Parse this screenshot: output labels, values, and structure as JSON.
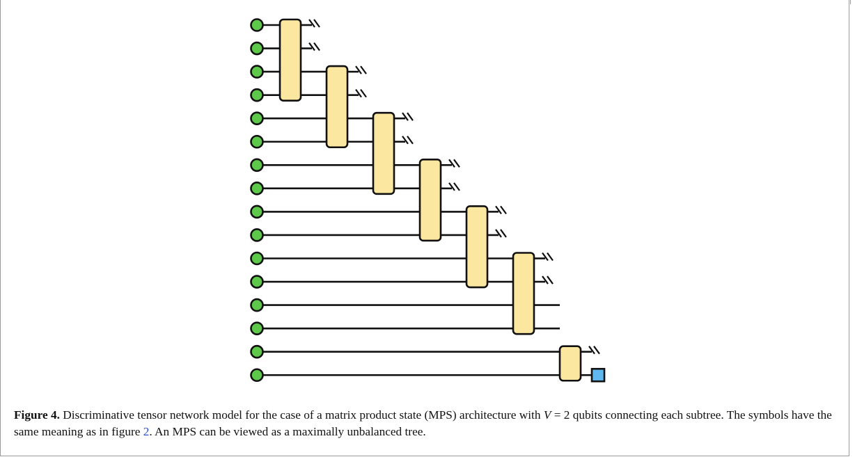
{
  "figure": {
    "label": "Figure 4.",
    "caption_pre_var": "Discriminative tensor network model for the case of a matrix product state (MPS) architecture with",
    "variable": "V",
    "caption_eq": "= 2 qubits connecting each subtree. The symbols have the same meaning as in figure",
    "figure_ref": "2",
    "caption_post": ". An MPS can be viewed as a maximally unbalanced tree."
  },
  "diagram": {
    "type": "mps_tree",
    "num_qubits": 16,
    "num_tensor_nodes": 7,
    "qubits_per_subtree": 2,
    "colors": {
      "qubit_fill": "#5dc84a",
      "tensor_fill": "#fce7a0",
      "output_fill": "#5fb8f0",
      "stroke": "#111111"
    },
    "symbols": {
      "input": "green-circle",
      "tensor": "yellow-rounded-rectangle",
      "discarded": "double-slash",
      "output": "blue-square"
    }
  }
}
